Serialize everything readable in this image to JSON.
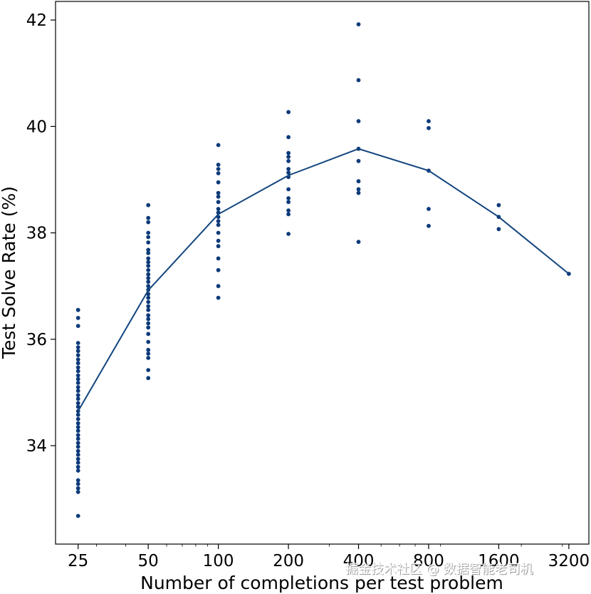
{
  "chart_data": {
    "type": "scatter",
    "xlabel": "Number of completions per test problem",
    "ylabel": "Test Solve Rate (%)",
    "x_scale": "log2",
    "x_ticks": [
      25,
      50,
      100,
      200,
      400,
      800,
      1600,
      3200
    ],
    "x_tick_labels": [
      "25",
      "50",
      "100",
      "200",
      "400",
      "800",
      "1600",
      "3200"
    ],
    "y_ticks": [
      34,
      36,
      38,
      40,
      42
    ],
    "y_tick_labels": [
      "34",
      "36",
      "38",
      "40",
      "42"
    ],
    "xlim": [
      20,
      3900
    ],
    "ylim": [
      32.15,
      42.35
    ],
    "grid": false,
    "point_color": "#0d3b7a",
    "line_color": "#12457f",
    "scatter": [
      {
        "x": 25,
        "y": [
          36.55,
          36.4,
          36.25,
          35.93,
          35.85,
          35.78,
          35.7,
          35.62,
          35.55,
          35.47,
          35.4,
          35.32,
          35.25,
          35.18,
          35.1,
          35.03,
          34.95,
          34.88,
          34.8,
          34.73,
          34.65,
          34.58,
          34.5,
          34.42,
          34.35,
          34.28,
          34.2,
          34.13,
          34.05,
          33.98,
          33.9,
          33.83,
          33.75,
          33.68,
          33.6,
          33.53,
          33.35,
          33.28,
          33.2,
          33.13,
          32.68
        ]
      },
      {
        "x": 50,
        "y": [
          38.52,
          38.28,
          38.2,
          38.0,
          37.92,
          37.82,
          37.68,
          37.62,
          37.52,
          37.45,
          37.38,
          37.3,
          37.22,
          37.15,
          37.08,
          37.0,
          36.93,
          36.85,
          36.78,
          36.7,
          36.62,
          36.55,
          36.45,
          36.38,
          36.3,
          36.22,
          36.1,
          35.95,
          35.8,
          35.73,
          35.65,
          35.42,
          35.27
        ]
      },
      {
        "x": 100,
        "y": [
          39.65,
          39.28,
          39.2,
          39.12,
          38.95,
          38.75,
          38.68,
          38.58,
          38.45,
          38.38,
          38.3,
          38.22,
          38.15,
          38.0,
          37.85,
          37.75,
          37.52,
          37.3,
          37.0,
          36.78
        ]
      },
      {
        "x": 200,
        "y": [
          40.27,
          39.8,
          39.5,
          39.43,
          39.35,
          39.2,
          39.13,
          39.05,
          38.82,
          38.65,
          38.58,
          38.42,
          38.35,
          37.98
        ]
      },
      {
        "x": 400,
        "y": [
          41.92,
          40.87,
          40.1,
          39.58,
          39.35,
          38.97,
          38.82,
          38.75,
          37.83
        ]
      },
      {
        "x": 800,
        "y": [
          40.1,
          39.97,
          39.17,
          38.45,
          38.13
        ]
      },
      {
        "x": 1600,
        "y": [
          38.52,
          38.3,
          38.07
        ]
      },
      {
        "x": 3200,
        "y": [
          37.23
        ]
      }
    ],
    "mean_line": {
      "x": [
        25,
        50,
        100,
        200,
        400,
        800,
        1600,
        3200
      ],
      "y": [
        34.65,
        36.92,
        38.35,
        39.08,
        39.58,
        39.17,
        38.3,
        37.23
      ]
    }
  },
  "watermark": {
    "text": "掘金技术社区 @ 数据智能老司机"
  }
}
